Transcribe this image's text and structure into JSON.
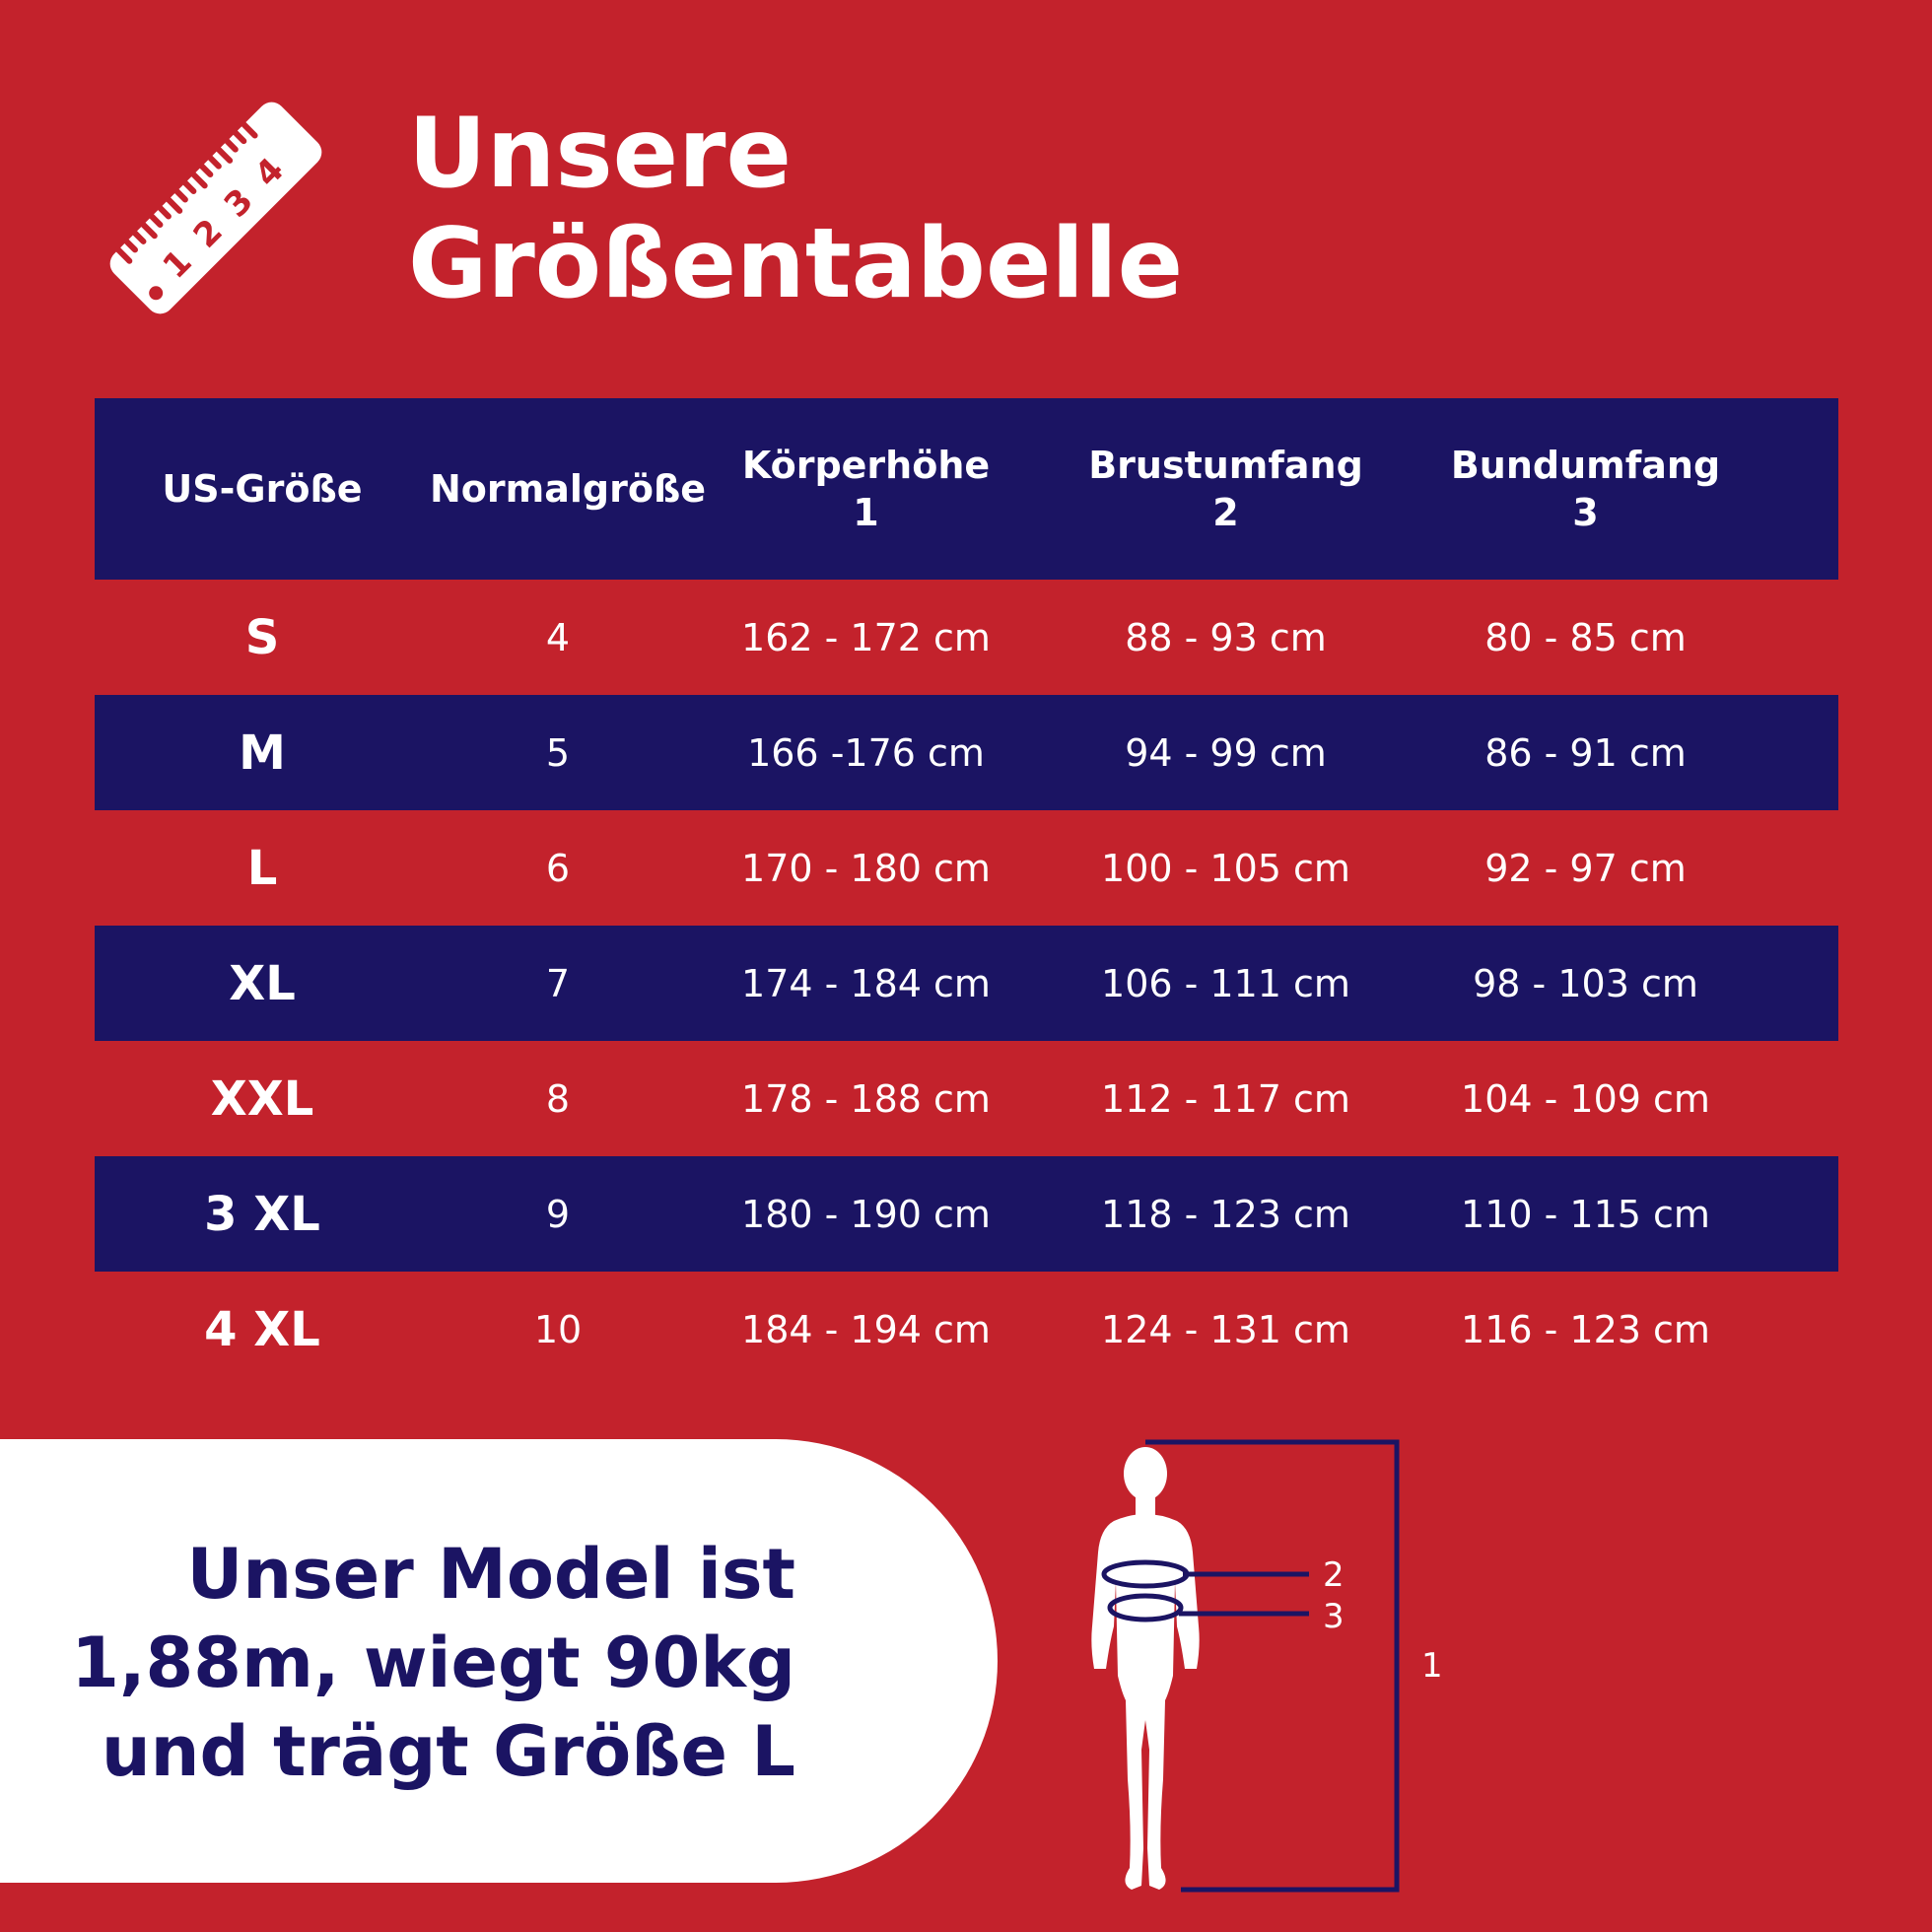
{
  "title": {
    "line1": "Unsere",
    "line2": "Größentabelle"
  },
  "ruler_icon": {
    "name": "ruler-icon",
    "numbers": [
      "1",
      "2",
      "3",
      "4"
    ]
  },
  "table": {
    "headers": [
      {
        "line1": "US-Größe",
        "line2": ""
      },
      {
        "line1": "Normalgröße",
        "line2": ""
      },
      {
        "line1": "Körperhöhe",
        "line2": "1"
      },
      {
        "line1": "Brustumfang",
        "line2": "2"
      },
      {
        "line1": "Bundumfang",
        "line2": "3"
      }
    ],
    "rows": [
      [
        "S",
        "4",
        "162 - 172 cm",
        "88 - 93 cm",
        "80 - 85 cm"
      ],
      [
        "M",
        "5",
        "166 -176 cm",
        "94 - 99 cm",
        "86 - 91 cm"
      ],
      [
        "L",
        "6",
        "170 - 180 cm",
        "100 - 105 cm",
        "92 - 97 cm"
      ],
      [
        "XL",
        "7",
        "174 - 184 cm",
        "106 - 111 cm",
        "98 - 103 cm"
      ],
      [
        "XXL",
        "8",
        "178 - 188 cm",
        "112 - 117 cm",
        "104 - 109 cm"
      ],
      [
        "3 XL",
        "9",
        "180 - 190 cm",
        "118 - 123 cm",
        "110 - 115 cm"
      ],
      [
        "4 XL",
        "10",
        "184 - 194 cm",
        "124 - 131 cm",
        "116 - 123 cm"
      ]
    ]
  },
  "model": {
    "line1": "Unser Model ist",
    "line2": "1,88m, wiegt 90kg",
    "line3": "und trägt Größe L"
  },
  "figure": {
    "label_chest": "2",
    "label_waist": "3",
    "label_height": "1"
  },
  "colors": {
    "background": "#c3222c",
    "navy": "#1b1463",
    "white": "#ffffff"
  }
}
